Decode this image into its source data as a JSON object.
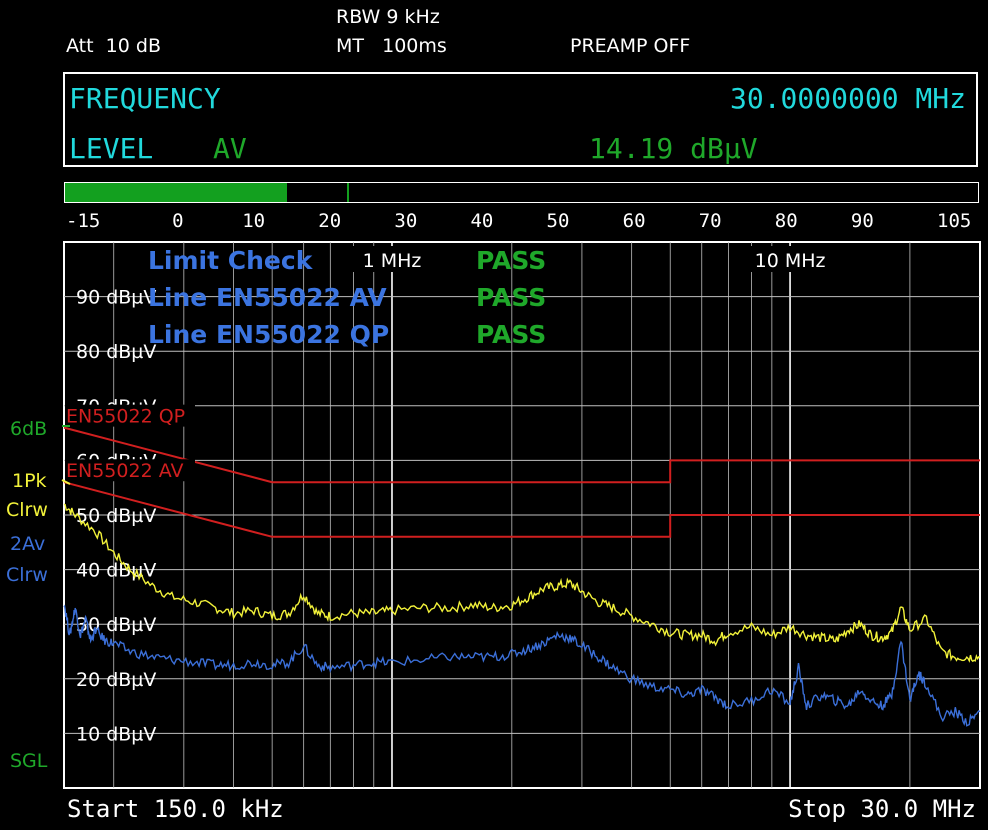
{
  "header": {
    "att_label": "Att",
    "att_value": "10 dB",
    "rbw_label": "RBW",
    "rbw_value": "9 kHz",
    "mt_label": "MT",
    "mt_value": "100ms",
    "preamp": "PREAMP OFF"
  },
  "readout": {
    "frequency_label": "FREQUENCY",
    "frequency_value": "30.0000000 MHz",
    "level_label": "LEVEL",
    "level_detector": "AV",
    "level_value": "14.19 dBµV",
    "bar_level": 14.19,
    "bar_peak": 22,
    "bar_min": -15,
    "bar_max": 105,
    "scale_ticks": [
      "-15",
      "0",
      "10",
      "20",
      "30",
      "40",
      "50",
      "60",
      "70",
      "80",
      "90",
      "105"
    ]
  },
  "side_labels": {
    "transducer": "6dB",
    "trace1_name": "1Pk",
    "trace1_mode": "Clrw",
    "trace2_name": "2Av",
    "trace2_mode": "Clrw",
    "sweep": "SGL"
  },
  "limit_check": {
    "title": "Limit Check",
    "title_result": "PASS",
    "lines": [
      {
        "label": "Line EN55022 AV",
        "result": "PASS"
      },
      {
        "label": "Line EN55022 QP",
        "result": "PASS"
      }
    ]
  },
  "footer": {
    "start": "Start 150.0 kHz",
    "stop": "Stop 30.0 MHz"
  },
  "colors": {
    "trace1": "#f2f23a",
    "trace2": "#3b6fd8",
    "limit": "#d11f1f",
    "grid": "#bfbfbf",
    "cyan": "#21d9dc",
    "green": "#1fa82a",
    "blue_text": "#3b74e0"
  },
  "chart_data": {
    "type": "line",
    "x_scale": "log",
    "x_unit": "MHz",
    "xlim": [
      0.15,
      30
    ],
    "ylim": [
      0,
      100
    ],
    "y_unit": "dBµV",
    "y_ticks": [
      {
        "value": 90,
        "label": "90 dBµV"
      },
      {
        "value": 80,
        "label": "80 dBµV"
      },
      {
        "value": 70,
        "label": "70 dBµV"
      },
      {
        "value": 60,
        "label": "60 dBµV"
      },
      {
        "value": 50,
        "label": "50 dBµV"
      },
      {
        "value": 40,
        "label": "40 dBµV"
      },
      {
        "value": 30,
        "label": "30 dBµV"
      },
      {
        "value": 20,
        "label": "20 dBµV"
      },
      {
        "value": 10,
        "label": "10 dBµV"
      }
    ],
    "x_labels": [
      {
        "value": 1,
        "label": "1 MHz"
      },
      {
        "value": 10,
        "label": "10 MHz"
      }
    ],
    "limit_lines": [
      {
        "name": "EN55022 QP",
        "x": [
          0.15,
          0.5,
          5,
          5,
          30
        ],
        "y": [
          66,
          56,
          56,
          60,
          60
        ]
      },
      {
        "name": "EN55022 AV",
        "x": [
          0.15,
          0.5,
          5,
          5,
          30
        ],
        "y": [
          56,
          46,
          46,
          50,
          50
        ]
      }
    ],
    "series": [
      {
        "trace": "1Pk",
        "x": [
          0.15,
          0.16,
          0.18,
          0.2,
          0.22,
          0.25,
          0.28,
          0.32,
          0.36,
          0.4,
          0.45,
          0.5,
          0.55,
          0.6,
          0.65,
          0.7,
          0.8,
          0.9,
          1.0,
          1.2,
          1.4,
          1.6,
          1.8,
          2.0,
          2.2,
          2.4,
          2.6,
          2.8,
          3.0,
          3.3,
          3.6,
          4.0,
          4.5,
          5.0,
          5.5,
          6.0,
          6.5,
          7.0,
          8.0,
          9.0,
          10,
          11,
          12,
          13,
          14,
          15,
          16,
          17,
          18,
          19,
          20,
          22,
          24,
          26,
          28,
          30
        ],
        "y": [
          52,
          50,
          47,
          43,
          40,
          37,
          35,
          34,
          33,
          32,
          32.5,
          31.5,
          32,
          35.5,
          32,
          31.5,
          32,
          32,
          32.5,
          33,
          33,
          33.5,
          33,
          33.5,
          35,
          36.5,
          37,
          37.5,
          36,
          34,
          33,
          31.5,
          30,
          28.5,
          28,
          28,
          27,
          28.5,
          29.5,
          28,
          29.5,
          28,
          27.5,
          27,
          29,
          30,
          28,
          27.5,
          28.5,
          33,
          29,
          31,
          25,
          24,
          24,
          24
        ]
      },
      {
        "trace": "2Av",
        "x": [
          0.15,
          0.155,
          0.16,
          0.165,
          0.17,
          0.175,
          0.18,
          0.19,
          0.2,
          0.22,
          0.25,
          0.28,
          0.32,
          0.36,
          0.4,
          0.45,
          0.5,
          0.55,
          0.6,
          0.65,
          0.7,
          0.8,
          0.9,
          1.0,
          1.2,
          1.4,
          1.6,
          1.8,
          2.0,
          2.2,
          2.4,
          2.6,
          2.8,
          3.0,
          3.3,
          3.6,
          4.0,
          4.5,
          5.0,
          5.5,
          6.0,
          6.5,
          7.0,
          8.0,
          9.0,
          10,
          10.5,
          11,
          12,
          13,
          14,
          15,
          16,
          17,
          18,
          19,
          20,
          21,
          22,
          24,
          26,
          28,
          30
        ],
        "y": [
          34,
          28,
          33,
          28,
          31,
          27,
          29,
          27,
          26.5,
          25,
          24,
          23.5,
          23,
          22.5,
          22.5,
          23,
          22.5,
          23,
          26,
          22.5,
          22,
          22.5,
          23,
          23,
          23.5,
          24,
          24,
          24,
          24.5,
          25.5,
          26.5,
          28,
          27.5,
          26,
          24,
          22,
          20,
          18.5,
          18,
          17,
          18,
          16.5,
          15,
          16,
          18,
          15.5,
          22,
          15,
          17,
          16,
          15,
          18,
          16,
          15,
          17,
          27,
          16,
          21,
          19,
          13,
          14,
          12,
          14
        ]
      }
    ]
  }
}
